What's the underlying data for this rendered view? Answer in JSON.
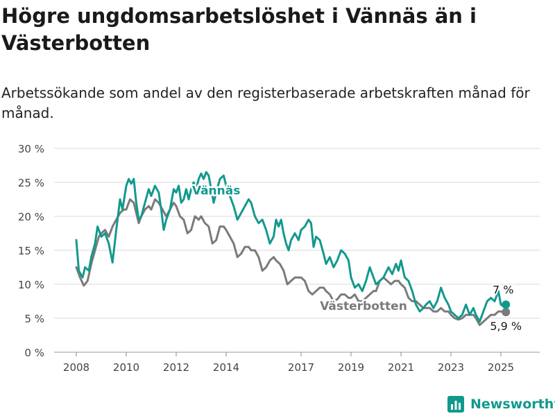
{
  "title": "Högre ungdomsarbetslöshet i Vännäs än i Västerbotten",
  "subtitle": "Arbetssökande som andel av den registerbaserade arbetskraften månad för månad.",
  "brand": {
    "name": "Newsworthy",
    "icon": "bar-chart-icon"
  },
  "colors": {
    "vannas": "#12998d",
    "vasterbotten": "#7a7a7c",
    "grid": "#d9d9d9",
    "axis": "#444444"
  },
  "chart_data": {
    "type": "line",
    "title": "Högre ungdomsarbetslöshet i Vännäs än i Västerbotten",
    "subtitle": "Arbetssökande som andel av den registerbaserade arbetskraften månad för månad.",
    "xlabel": "",
    "ylabel": "",
    "xlim": [
      2008,
      2025.5
    ],
    "ylim": [
      0,
      30
    ],
    "yticks": [
      0,
      5,
      10,
      15,
      20,
      25,
      30
    ],
    "ytick_labels": [
      "0 %",
      "5 %",
      "10 %",
      "15 %",
      "20 %",
      "25 %",
      "30 %"
    ],
    "xticks": [
      2008,
      2010,
      2012,
      2014,
      2017,
      2019,
      2021,
      2023,
      2025
    ],
    "xtick_labels": [
      "2008",
      "2010",
      "2012",
      "2014",
      "2017",
      "2019",
      "2021",
      "2023",
      "2025"
    ],
    "grid": true,
    "legend": "inline labels",
    "series": [
      {
        "name": "Vännäs",
        "end_label": "7 %",
        "points": [
          [
            2008.0,
            16.5
          ],
          [
            2008.1,
            12.0
          ],
          [
            2008.25,
            11.0
          ],
          [
            2008.35,
            12.5
          ],
          [
            2008.5,
            12.0
          ],
          [
            2008.6,
            14.0
          ],
          [
            2008.75,
            16.0
          ],
          [
            2008.85,
            18.5
          ],
          [
            2009.0,
            17.0
          ],
          [
            2009.15,
            17.5
          ],
          [
            2009.3,
            16.0
          ],
          [
            2009.45,
            13.2
          ],
          [
            2009.6,
            18.0
          ],
          [
            2009.75,
            22.5
          ],
          [
            2009.85,
            21.0
          ],
          [
            2010.0,
            24.5
          ],
          [
            2010.1,
            25.5
          ],
          [
            2010.2,
            24.8
          ],
          [
            2010.3,
            25.5
          ],
          [
            2010.4,
            22.0
          ],
          [
            2010.5,
            19.5
          ],
          [
            2010.6,
            20.0
          ],
          [
            2010.75,
            22.0
          ],
          [
            2010.9,
            24.0
          ],
          [
            2011.0,
            23.0
          ],
          [
            2011.15,
            24.5
          ],
          [
            2011.3,
            23.5
          ],
          [
            2011.4,
            21.0
          ],
          [
            2011.5,
            18.0
          ],
          [
            2011.6,
            19.5
          ],
          [
            2011.75,
            21.0
          ],
          [
            2011.9,
            24.0
          ],
          [
            2012.0,
            23.5
          ],
          [
            2012.1,
            24.5
          ],
          [
            2012.2,
            22.0
          ],
          [
            2012.3,
            22.5
          ],
          [
            2012.4,
            24.0
          ],
          [
            2012.5,
            22.5
          ],
          [
            2012.6,
            24.0
          ],
          [
            2012.7,
            25.0
          ],
          [
            2012.8,
            24.0
          ],
          [
            2012.9,
            25.5
          ],
          [
            2013.0,
            26.3
          ],
          [
            2013.1,
            25.5
          ],
          [
            2013.2,
            26.5
          ],
          [
            2013.3,
            26.0
          ],
          [
            2013.4,
            24.0
          ],
          [
            2013.5,
            22.0
          ],
          [
            2013.6,
            23.5
          ],
          [
            2013.75,
            25.5
          ],
          [
            2013.9,
            26.0
          ],
          [
            2014.0,
            24.5
          ],
          [
            2014.15,
            23.0
          ],
          [
            2014.3,
            21.5
          ],
          [
            2014.45,
            19.5
          ],
          [
            2014.6,
            20.5
          ],
          [
            2014.75,
            21.5
          ],
          [
            2014.9,
            22.5
          ],
          [
            2015.0,
            22.0
          ],
          [
            2015.15,
            20.0
          ],
          [
            2015.3,
            19.0
          ],
          [
            2015.45,
            19.5
          ],
          [
            2015.6,
            18.0
          ],
          [
            2015.75,
            16.0
          ],
          [
            2015.9,
            17.0
          ],
          [
            2016.0,
            19.5
          ],
          [
            2016.1,
            18.5
          ],
          [
            2016.2,
            19.5
          ],
          [
            2016.3,
            17.5
          ],
          [
            2016.4,
            16.0
          ],
          [
            2016.5,
            15.0
          ],
          [
            2016.6,
            16.5
          ],
          [
            2016.75,
            17.5
          ],
          [
            2016.9,
            16.5
          ],
          [
            2017.0,
            18.0
          ],
          [
            2017.15,
            18.5
          ],
          [
            2017.3,
            19.5
          ],
          [
            2017.4,
            19.0
          ],
          [
            2017.5,
            15.5
          ],
          [
            2017.6,
            17.0
          ],
          [
            2017.75,
            16.5
          ],
          [
            2017.9,
            14.5
          ],
          [
            2018.0,
            13.0
          ],
          [
            2018.15,
            14.0
          ],
          [
            2018.3,
            12.5
          ],
          [
            2018.45,
            13.5
          ],
          [
            2018.6,
            15.0
          ],
          [
            2018.75,
            14.5
          ],
          [
            2018.9,
            13.5
          ],
          [
            2019.0,
            11.0
          ],
          [
            2019.15,
            9.5
          ],
          [
            2019.3,
            10.0
          ],
          [
            2019.45,
            9.0
          ],
          [
            2019.6,
            10.5
          ],
          [
            2019.75,
            12.5
          ],
          [
            2019.9,
            11.0
          ],
          [
            2020.0,
            10.0
          ],
          [
            2020.15,
            10.5
          ],
          [
            2020.3,
            11.0
          ],
          [
            2020.5,
            12.5
          ],
          [
            2020.65,
            11.5
          ],
          [
            2020.8,
            13.0
          ],
          [
            2020.9,
            12.0
          ],
          [
            2021.0,
            13.5
          ],
          [
            2021.15,
            11.0
          ],
          [
            2021.3,
            10.5
          ],
          [
            2021.45,
            9.0
          ],
          [
            2021.6,
            7.0
          ],
          [
            2021.75,
            6.0
          ],
          [
            2021.9,
            6.5
          ],
          [
            2022.0,
            7.0
          ],
          [
            2022.15,
            7.5
          ],
          [
            2022.3,
            6.5
          ],
          [
            2022.45,
            7.5
          ],
          [
            2022.6,
            9.5
          ],
          [
            2022.75,
            8.0
          ],
          [
            2022.9,
            7.0
          ],
          [
            2023.0,
            6.0
          ],
          [
            2023.15,
            5.5
          ],
          [
            2023.3,
            5.0
          ],
          [
            2023.45,
            5.5
          ],
          [
            2023.6,
            7.0
          ],
          [
            2023.75,
            5.5
          ],
          [
            2023.9,
            6.5
          ],
          [
            2024.0,
            5.5
          ],
          [
            2024.15,
            4.5
          ],
          [
            2024.3,
            6.0
          ],
          [
            2024.45,
            7.5
          ],
          [
            2024.6,
            8.0
          ],
          [
            2024.75,
            7.5
          ],
          [
            2024.9,
            9.0
          ],
          [
            2025.0,
            7.0
          ],
          [
            2025.1,
            6.8
          ],
          [
            2025.2,
            7.0
          ]
        ]
      },
      {
        "name": "Västerbotten",
        "end_label": "5,9 %",
        "points": [
          [
            2008.0,
            12.5
          ],
          [
            2008.15,
            11.0
          ],
          [
            2008.3,
            9.8
          ],
          [
            2008.45,
            10.5
          ],
          [
            2008.6,
            13.0
          ],
          [
            2008.75,
            15.0
          ],
          [
            2008.9,
            17.0
          ],
          [
            2009.0,
            17.5
          ],
          [
            2009.15,
            18.0
          ],
          [
            2009.3,
            17.0
          ],
          [
            2009.45,
            18.5
          ],
          [
            2009.6,
            19.5
          ],
          [
            2009.75,
            20.5
          ],
          [
            2009.9,
            21.0
          ],
          [
            2010.0,
            21.0
          ],
          [
            2010.15,
            22.5
          ],
          [
            2010.3,
            22.0
          ],
          [
            2010.4,
            20.5
          ],
          [
            2010.5,
            19.0
          ],
          [
            2010.6,
            20.0
          ],
          [
            2010.75,
            21.0
          ],
          [
            2010.9,
            21.5
          ],
          [
            2011.0,
            21.0
          ],
          [
            2011.15,
            22.5
          ],
          [
            2011.3,
            22.0
          ],
          [
            2011.45,
            21.0
          ],
          [
            2011.6,
            20.0
          ],
          [
            2011.75,
            21.0
          ],
          [
            2011.9,
            22.0
          ],
          [
            2012.0,
            21.5
          ],
          [
            2012.15,
            20.0
          ],
          [
            2012.3,
            19.5
          ],
          [
            2012.45,
            17.5
          ],
          [
            2012.6,
            18.0
          ],
          [
            2012.75,
            20.0
          ],
          [
            2012.9,
            19.5
          ],
          [
            2013.0,
            20.0
          ],
          [
            2013.15,
            19.0
          ],
          [
            2013.3,
            18.5
          ],
          [
            2013.45,
            16.0
          ],
          [
            2013.6,
            16.5
          ],
          [
            2013.75,
            18.5
          ],
          [
            2013.9,
            18.5
          ],
          [
            2014.0,
            18.0
          ],
          [
            2014.15,
            17.0
          ],
          [
            2014.3,
            16.0
          ],
          [
            2014.45,
            14.0
          ],
          [
            2014.6,
            14.5
          ],
          [
            2014.75,
            15.5
          ],
          [
            2014.9,
            15.5
          ],
          [
            2015.0,
            15.0
          ],
          [
            2015.15,
            15.0
          ],
          [
            2015.3,
            14.0
          ],
          [
            2015.45,
            12.0
          ],
          [
            2015.6,
            12.5
          ],
          [
            2015.75,
            13.5
          ],
          [
            2015.9,
            14.0
          ],
          [
            2016.0,
            13.5
          ],
          [
            2016.15,
            13.0
          ],
          [
            2016.3,
            12.0
          ],
          [
            2016.45,
            10.0
          ],
          [
            2016.6,
            10.5
          ],
          [
            2016.75,
            11.0
          ],
          [
            2016.9,
            11.0
          ],
          [
            2017.0,
            11.0
          ],
          [
            2017.15,
            10.5
          ],
          [
            2017.3,
            9.0
          ],
          [
            2017.45,
            8.5
          ],
          [
            2017.6,
            9.0
          ],
          [
            2017.75,
            9.5
          ],
          [
            2017.9,
            9.5
          ],
          [
            2018.0,
            9.0
          ],
          [
            2018.15,
            8.5
          ],
          [
            2018.3,
            7.5
          ],
          [
            2018.45,
            7.8
          ],
          [
            2018.6,
            8.5
          ],
          [
            2018.75,
            8.5
          ],
          [
            2018.9,
            8.0
          ],
          [
            2019.0,
            8.0
          ],
          [
            2019.15,
            8.5
          ],
          [
            2019.3,
            7.5
          ],
          [
            2019.45,
            7.5
          ],
          [
            2019.6,
            8.0
          ],
          [
            2019.75,
            8.5
          ],
          [
            2019.9,
            9.0
          ],
          [
            2020.0,
            9.0
          ],
          [
            2020.15,
            10.5
          ],
          [
            2020.3,
            11.0
          ],
          [
            2020.45,
            10.5
          ],
          [
            2020.6,
            10.0
          ],
          [
            2020.75,
            10.5
          ],
          [
            2020.9,
            10.5
          ],
          [
            2021.0,
            10.0
          ],
          [
            2021.15,
            9.5
          ],
          [
            2021.3,
            8.0
          ],
          [
            2021.45,
            7.5
          ],
          [
            2021.6,
            7.5
          ],
          [
            2021.75,
            7.0
          ],
          [
            2021.9,
            6.5
          ],
          [
            2022.0,
            6.5
          ],
          [
            2022.15,
            6.5
          ],
          [
            2022.3,
            6.0
          ],
          [
            2022.45,
            6.0
          ],
          [
            2022.6,
            6.5
          ],
          [
            2022.75,
            6.0
          ],
          [
            2022.9,
            6.0
          ],
          [
            2023.0,
            5.5
          ],
          [
            2023.15,
            5.0
          ],
          [
            2023.3,
            4.8
          ],
          [
            2023.45,
            5.0
          ],
          [
            2023.6,
            5.5
          ],
          [
            2023.75,
            5.5
          ],
          [
            2023.9,
            5.5
          ],
          [
            2024.0,
            5.0
          ],
          [
            2024.15,
            4.0
          ],
          [
            2024.3,
            4.5
          ],
          [
            2024.45,
            5.0
          ],
          [
            2024.6,
            5.5
          ],
          [
            2024.75,
            5.5
          ],
          [
            2024.9,
            6.0
          ],
          [
            2025.0,
            6.0
          ],
          [
            2025.1,
            5.9
          ],
          [
            2025.2,
            5.9
          ]
        ]
      }
    ]
  }
}
